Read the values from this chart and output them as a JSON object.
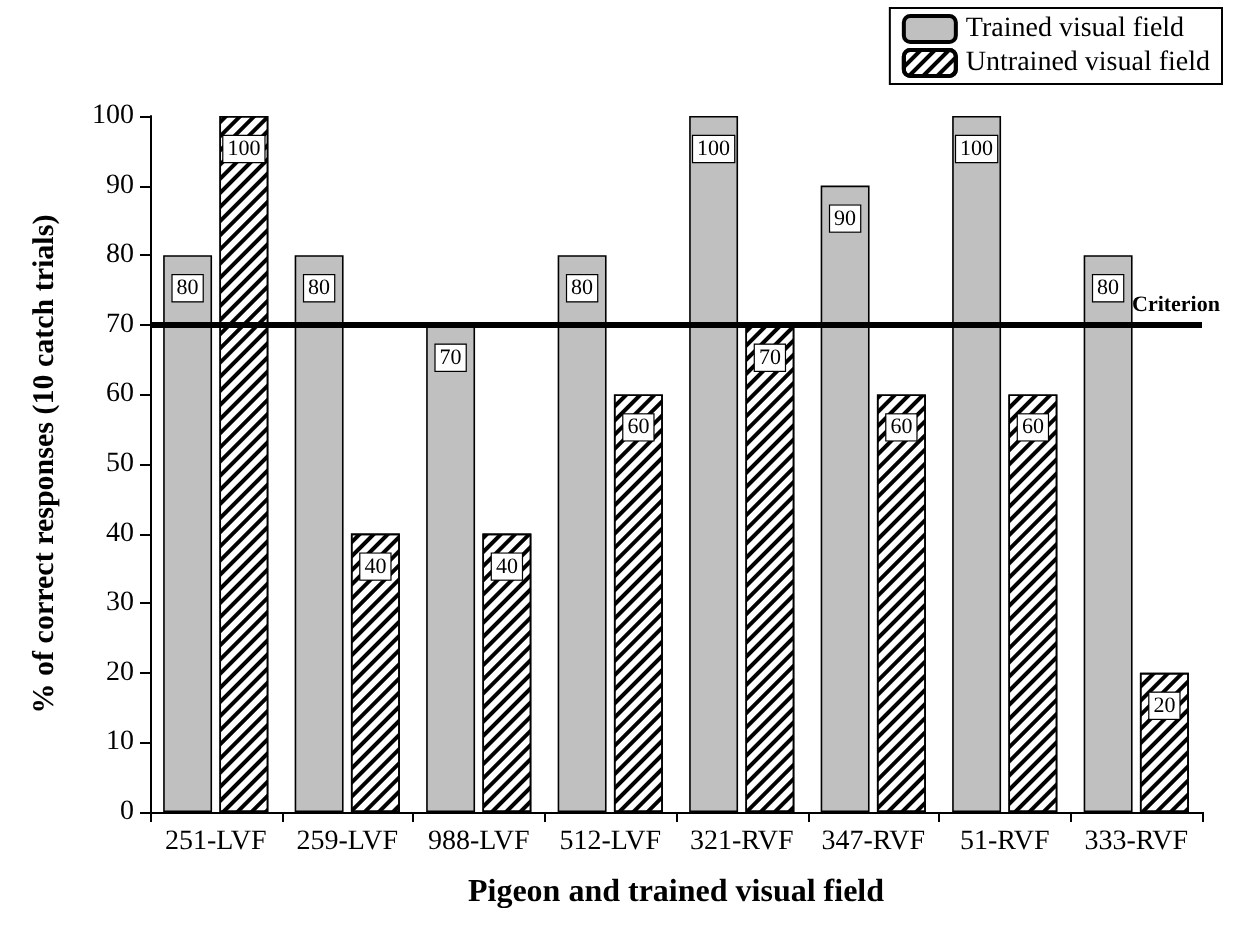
{
  "chart_data": {
    "type": "bar",
    "xlabel": "Pigeon and trained visual field",
    "ylabel": "% of correct responses (10 catch trials)",
    "categories": [
      "251-LVF",
      "259-LVF",
      "988-LVF",
      "512-LVF",
      "321-RVF",
      "347-RVF",
      "51-RVF",
      "333-RVF"
    ],
    "series": [
      {
        "name": "Trained visual field",
        "color": "#c0c0c0",
        "values": [
          80,
          80,
          70,
          80,
          100,
          90,
          100,
          80
        ]
      },
      {
        "name": "Untrained visual field",
        "color": "#ffffff",
        "values": [
          100,
          40,
          40,
          60,
          70,
          60,
          60,
          20
        ]
      }
    ],
    "ylim": [
      0,
      100
    ],
    "yticks": [
      0,
      10,
      20,
      30,
      40,
      50,
      60,
      70,
      80,
      90,
      100
    ],
    "ref_lines": [
      {
        "axis": "y",
        "value": 70,
        "label": "Criterion",
        "color": "#000000"
      }
    ],
    "data_labels": true,
    "grid": false,
    "legend": "top right"
  }
}
